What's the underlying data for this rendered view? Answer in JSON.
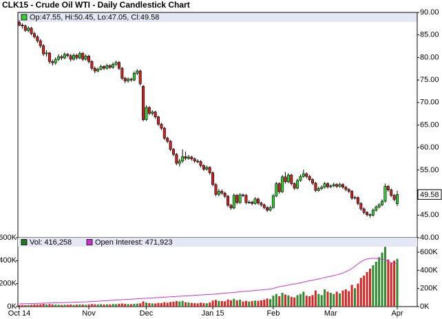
{
  "chart_data": [
    {
      "type": "candlestick",
      "title": "CLK15 - Crude Oil WTI - Daily Candlestick Chart",
      "legend_text": "Op:47.55, Hi:50.45, Lo:47.05, Cl:49.58",
      "last_price_label": "49.58",
      "up_color": "#33cc33",
      "down_color": "#cc2222",
      "categories": [
        "Oct 14",
        null,
        null,
        null,
        null,
        null,
        null,
        null,
        null,
        null,
        null,
        null,
        null,
        null,
        null,
        null,
        null,
        null,
        null,
        null,
        null,
        null,
        null,
        "Nov",
        null,
        null,
        null,
        null,
        null,
        null,
        null,
        null,
        null,
        null,
        null,
        null,
        null,
        null,
        null,
        null,
        null,
        null,
        "Dec",
        null,
        null,
        null,
        null,
        null,
        null,
        null,
        null,
        null,
        null,
        null,
        null,
        null,
        null,
        null,
        null,
        null,
        null,
        null,
        null,
        null,
        "Jan 15",
        null,
        null,
        null,
        null,
        null,
        null,
        null,
        null,
        null,
        null,
        null,
        null,
        null,
        null,
        null,
        null,
        null,
        null,
        null,
        "Feb",
        null,
        null,
        null,
        null,
        null,
        null,
        null,
        null,
        null,
        null,
        null,
        null,
        null,
        null,
        null,
        null,
        null,
        null,
        "Mar",
        null,
        null,
        null,
        null,
        null,
        null,
        null,
        null,
        null,
        null,
        null,
        null,
        null,
        null,
        null,
        null,
        null,
        null,
        null,
        null,
        null,
        "Apr"
      ],
      "open": [
        87.8,
        87.2,
        87.0,
        86.0,
        86.5,
        85.3,
        84.6,
        83.7,
        82.6,
        80.8,
        81.0,
        79.1,
        78.8,
        79.6,
        80.2,
        79.9,
        80.7,
        80.4,
        79.6,
        80.5,
        79.9,
        80.9,
        79.6,
        80.3,
        79.1,
        77.6,
        77.0,
        77.4,
        78.0,
        77.6,
        78.2,
        77.8,
        78.5,
        78.9,
        77.6,
        75.4,
        74.8,
        75.2,
        75.0,
        76.5,
        77.0,
        73.6,
        66.2,
        68.9,
        67.6,
        67.9,
        66.8,
        65.2,
        64.3,
        62.1,
        61.4,
        59.6,
        58.5,
        56.5,
        57.0,
        58.0,
        57.6,
        57.9,
        57.5,
        57.0,
        56.9,
        56.0,
        55.2,
        55.6,
        54.4,
        51.8,
        49.6,
        50.3,
        49.9,
        49.2,
        47.2,
        46.6,
        49.4,
        47.8,
        49.5,
        49.4,
        47.8,
        47.9,
        47.6,
        48.6,
        47.7,
        47.3,
        46.7,
        46.1,
        46.7,
        49.3,
        52.0,
        50.2,
        53.5,
        52.4,
        53.9,
        52.0,
        51.0,
        52.7,
        53.6,
        54.2,
        53.6,
        52.9,
        52.1,
        50.5,
        50.9,
        51.2,
        52.0,
        51.3,
        51.5,
        51.8,
        51.4,
        51.8,
        51.2,
        50.7,
        50.3,
        48.8,
        48.9,
        47.6,
        46.4,
        45.6,
        45.1,
        45.0,
        46.1,
        46.8,
        47.3,
        48.1,
        51.4,
        50.6,
        49.4,
        47.55
      ],
      "high": [
        88.3,
        87.6,
        87.3,
        86.9,
        86.8,
        85.7,
        85.0,
        84.1,
        83.0,
        81.6,
        81.2,
        79.5,
        80.0,
        80.7,
        80.6,
        81.1,
        81.0,
        80.8,
        80.9,
        80.8,
        81.3,
        81.2,
        80.7,
        80.6,
        79.4,
        78.0,
        77.8,
        78.4,
        78.3,
        78.6,
        78.5,
        78.9,
        79.3,
        79.2,
        77.9,
        75.7,
        75.6,
        75.5,
        76.9,
        77.4,
        77.3,
        73.9,
        69.4,
        69.2,
        68.3,
        68.2,
        67.1,
        65.5,
        64.6,
        62.4,
        61.7,
        59.9,
        58.8,
        57.5,
        59.6,
        59.1,
        58.4,
        58.2,
        57.8,
        57.4,
        57.2,
        56.3,
        56.0,
        55.9,
        54.7,
        52.1,
        50.8,
        50.7,
        50.2,
        49.5,
        47.5,
        49.8,
        49.7,
        49.9,
        49.8,
        49.7,
        48.3,
        48.2,
        49.0,
        48.9,
        48.0,
        47.6,
        47.0,
        47.1,
        49.7,
        52.4,
        52.3,
        53.9,
        54.6,
        54.3,
        54.2,
        52.3,
        53.1,
        54.0,
        55.1,
        54.5,
        53.9,
        53.2,
        52.4,
        51.3,
        51.6,
        52.4,
        52.3,
        51.8,
        52.2,
        52.1,
        52.2,
        52.1,
        51.5,
        51.0,
        50.6,
        49.3,
        49.2,
        47.9,
        46.7,
        45.9,
        45.4,
        46.5,
        47.2,
        47.7,
        48.5,
        52.0,
        51.7,
        50.9,
        49.7,
        50.45
      ],
      "low": [
        86.9,
        86.4,
        85.7,
        85.6,
        84.9,
        84.2,
        83.2,
        82.1,
        80.3,
        80.2,
        78.6,
        78.2,
        78.4,
        79.2,
        79.4,
        79.6,
        80.0,
        79.1,
        79.3,
        79.5,
        79.6,
        79.2,
        79.3,
        78.7,
        77.2,
        76.5,
        76.7,
        77.1,
        77.2,
        77.3,
        77.4,
        77.5,
        78.1,
        77.2,
        75.0,
        74.3,
        74.4,
        74.6,
        74.7,
        76.1,
        73.8,
        65.8,
        65.9,
        67.2,
        67.1,
        66.4,
        64.8,
        63.9,
        61.7,
        61.0,
        59.2,
        58.1,
        56.1,
        55.8,
        56.6,
        57.2,
        57.3,
        57.1,
        56.6,
        56.5,
        55.6,
        54.8,
        54.9,
        54.0,
        51.4,
        49.2,
        49.2,
        49.5,
        48.8,
        46.8,
        46.2,
        46.3,
        47.4,
        47.5,
        49.0,
        47.4,
        47.5,
        47.2,
        47.3,
        47.3,
        46.9,
        46.3,
        45.7,
        45.8,
        46.4,
        49.0,
        49.8,
        49.9,
        52.0,
        52.1,
        51.6,
        50.6,
        50.7,
        52.4,
        53.3,
        53.2,
        52.5,
        51.7,
        50.1,
        50.2,
        50.6,
        50.9,
        50.9,
        51.0,
        51.2,
        51.0,
        51.1,
        50.8,
        50.3,
        49.9,
        48.4,
        48.5,
        47.2,
        46.0,
        45.2,
        44.7,
        44.4,
        44.7,
        45.8,
        46.5,
        47.0,
        47.8,
        50.2,
        49.0,
        48.1,
        47.05
      ],
      "close": [
        87.2,
        87.0,
        86.0,
        86.5,
        85.3,
        84.6,
        83.7,
        82.6,
        80.8,
        81.0,
        79.1,
        78.8,
        79.6,
        80.2,
        79.9,
        80.7,
        80.4,
        79.6,
        80.5,
        79.9,
        80.9,
        79.6,
        80.3,
        79.1,
        77.6,
        77.0,
        77.4,
        78.0,
        77.6,
        78.2,
        77.8,
        78.5,
        78.9,
        77.6,
        75.4,
        74.8,
        75.2,
        75.0,
        76.5,
        77.0,
        74.2,
        66.2,
        68.9,
        67.6,
        67.9,
        66.8,
        65.2,
        64.3,
        62.1,
        61.4,
        59.6,
        58.5,
        56.5,
        57.0,
        58.0,
        57.6,
        57.9,
        57.5,
        57.0,
        56.9,
        56.0,
        55.2,
        55.6,
        54.4,
        51.8,
        49.6,
        50.3,
        49.9,
        49.2,
        47.2,
        46.6,
        49.4,
        47.8,
        49.5,
        49.4,
        47.8,
        47.9,
        47.6,
        48.6,
        47.7,
        47.3,
        46.7,
        46.1,
        46.7,
        49.3,
        52.0,
        50.2,
        53.5,
        52.4,
        53.9,
        52.0,
        51.0,
        52.7,
        53.6,
        54.2,
        53.6,
        52.9,
        52.1,
        50.5,
        50.9,
        51.2,
        52.0,
        51.3,
        51.5,
        51.8,
        51.4,
        51.8,
        51.2,
        50.7,
        50.3,
        48.8,
        48.9,
        47.6,
        46.4,
        45.6,
        45.1,
        45.0,
        46.1,
        46.8,
        47.3,
        48.1,
        51.4,
        50.6,
        49.4,
        48.5,
        49.58
      ],
      "ylim": [
        40,
        90
      ],
      "yticks": [
        {
          "value": 40,
          "label": "40.00"
        },
        {
          "value": 45,
          "label": "45.00"
        },
        {
          "value": 50,
          "label": "50.00"
        },
        {
          "value": 55,
          "label": "55.00"
        },
        {
          "value": 60,
          "label": "60.00"
        },
        {
          "value": 65,
          "label": "65.00"
        },
        {
          "value": 70,
          "label": "70.00"
        },
        {
          "value": 75,
          "label": "75.00"
        },
        {
          "value": 80,
          "label": "80.00"
        },
        {
          "value": 85,
          "label": "85.00"
        },
        {
          "value": 90,
          "label": "90.00"
        }
      ]
    },
    {
      "type": "volume",
      "series": [
        {
          "name": "Vol: 416,258",
          "color": "#1f7a1f",
          "values": [
            12000,
            14000,
            13000,
            15000,
            16000,
            18000,
            17000,
            20000,
            24000,
            19000,
            22000,
            18000,
            17000,
            16000,
            15000,
            17000,
            16000,
            18000,
            15000,
            17000,
            19000,
            18000,
            16000,
            18000,
            22000,
            20000,
            19000,
            21000,
            18000,
            20000,
            19000,
            22000,
            21000,
            24000,
            27000,
            23000,
            22000,
            21000,
            24000,
            26000,
            28000,
            45000,
            35000,
            30000,
            28000,
            27000,
            32000,
            30000,
            38000,
            34000,
            40000,
            42000,
            48000,
            45000,
            50000,
            38000,
            36000,
            32000,
            30000,
            28000,
            34000,
            30000,
            29000,
            35000,
            52000,
            58000,
            50000,
            48000,
            46000,
            62000,
            55000,
            68000,
            54000,
            60000,
            45000,
            50000,
            44000,
            48000,
            52000,
            50000,
            55000,
            60000,
            70000,
            65000,
            95000,
            110000,
            90000,
            120000,
            105000,
            98000,
            85000,
            80000,
            100000,
            110000,
            130000,
            95000,
            90000,
            100000,
            140000,
            110000,
            100000,
            150000,
            130000,
            120000,
            110000,
            130000,
            115000,
            140000,
            150000,
            135000,
            190000,
            160000,
            200000,
            250000,
            270000,
            300000,
            330000,
            360000,
            390000,
            430000,
            470000,
            520000,
            410000,
            380000,
            400000,
            416258
          ]
        },
        {
          "name": "Open Interest: 471,923",
          "color": "#cc33cc",
          "axis": "y2",
          "values": [
            30000,
            31000,
            32000,
            33000,
            34000,
            35000,
            36000,
            37000,
            38000,
            39000,
            40000,
            41000,
            42000,
            43000,
            44000,
            45000,
            46000,
            47000,
            48000,
            49000,
            50000,
            51000,
            52000,
            54000,
            56000,
            58000,
            60000,
            62000,
            64000,
            66000,
            68000,
            70000,
            72000,
            74000,
            76000,
            78000,
            80000,
            82000,
            84000,
            86000,
            88000,
            90000,
            92000,
            94000,
            96000,
            98000,
            100000,
            102000,
            104000,
            106000,
            108000,
            110000,
            112000,
            114000,
            116000,
            118000,
            120000,
            122000,
            124000,
            126000,
            128000,
            130000,
            132000,
            134000,
            136000,
            139000,
            142000,
            145000,
            148000,
            151000,
            154000,
            157000,
            160000,
            163000,
            166000,
            169000,
            172000,
            175000,
            178000,
            181000,
            184000,
            187000,
            190000,
            193000,
            200000,
            210000,
            220000,
            225000,
            230000,
            238000,
            245000,
            250000,
            255000,
            262000,
            270000,
            278000,
            285000,
            290000,
            298000,
            305000,
            312000,
            320000,
            328000,
            335000,
            342000,
            350000,
            360000,
            370000,
            385000,
            400000,
            420000,
            445000,
            470000,
            495000,
            515000,
            525000,
            530000,
            532000,
            530000,
            528000,
            522000,
            515000,
            500000,
            485000,
            475000,
            471923
          ]
        }
      ],
      "ylim": [
        0,
        600000
      ],
      "yticks": [
        {
          "value": 0,
          "label": "0K"
        },
        {
          "value": 200000,
          "label": "200K"
        },
        {
          "value": 400000,
          "label": "400K"
        },
        {
          "value": 600000,
          "label": "600K"
        }
      ],
      "y2lim": [
        0,
        760000
      ],
      "y2ticks": [
        {
          "value": 0,
          "label": "0K"
        },
        {
          "value": 200000,
          "label": "200K"
        },
        {
          "value": 400000,
          "label": "400K"
        },
        {
          "value": 600000,
          "label": "600K"
        }
      ]
    }
  ]
}
